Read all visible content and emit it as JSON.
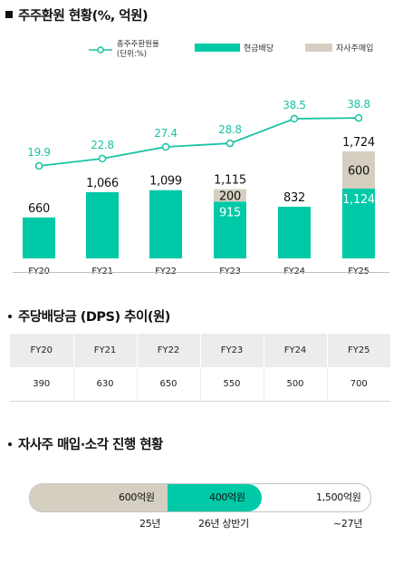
{
  "section1": {
    "title": "주주환원 현황(%, 억원)"
  },
  "legend": {
    "line": "총주주환원율",
    "line_unit": "(단위:%)",
    "cash": "현금배당",
    "buyback": "자사주매입"
  },
  "colors": {
    "cash": "#00c9a7",
    "buyback": "#d4cfc0",
    "line": "#19c2a4"
  },
  "chart_data": {
    "type": "bar",
    "stacked": true,
    "categories": [
      "FY20",
      "FY21",
      "FY22",
      "FY23",
      "FY24",
      "FY25"
    ],
    "series": [
      {
        "name": "현금배당",
        "values": [
          660,
          1066,
          1099,
          915,
          832,
          1124
        ]
      },
      {
        "name": "자사주매입",
        "values": [
          0,
          0,
          0,
          200,
          0,
          600
        ]
      }
    ],
    "totals": [
      660,
      1066,
      1099,
      1115,
      832,
      1724
    ],
    "total_labels": [
      "660",
      "1,066",
      "1,099",
      "1,115",
      "832",
      "1,724"
    ],
    "segment_labels": {
      "cash": [
        "",
        "",
        "",
        "915",
        "",
        "1,124"
      ],
      "buyback": [
        "",
        "",
        "",
        "200",
        "",
        "600"
      ]
    },
    "line_series": {
      "name": "총주주환원율",
      "unit": "%",
      "values": [
        19.9,
        22.8,
        27.4,
        28.8,
        38.5,
        38.8
      ],
      "labels": [
        "19.9",
        "22.8",
        "27.4",
        "28.8",
        "38.5",
        "38.8"
      ]
    },
    "legend_position": "top-right"
  },
  "section2": {
    "title": "주당배당금 (DPS) 추이(원)",
    "headers": [
      "FY20",
      "FY21",
      "FY22",
      "FY23",
      "FY24",
      "FY25"
    ],
    "values": [
      "390",
      "630",
      "650",
      "550",
      "500",
      "700"
    ]
  },
  "section3": {
    "title": "자사주 매입·소각 진행 현황",
    "segments": [
      {
        "label": "600억원",
        "period": "25년"
      },
      {
        "label": "400억원",
        "period": "26년 상반기"
      },
      {
        "label": "1,500억원",
        "period": "~27년"
      }
    ]
  }
}
